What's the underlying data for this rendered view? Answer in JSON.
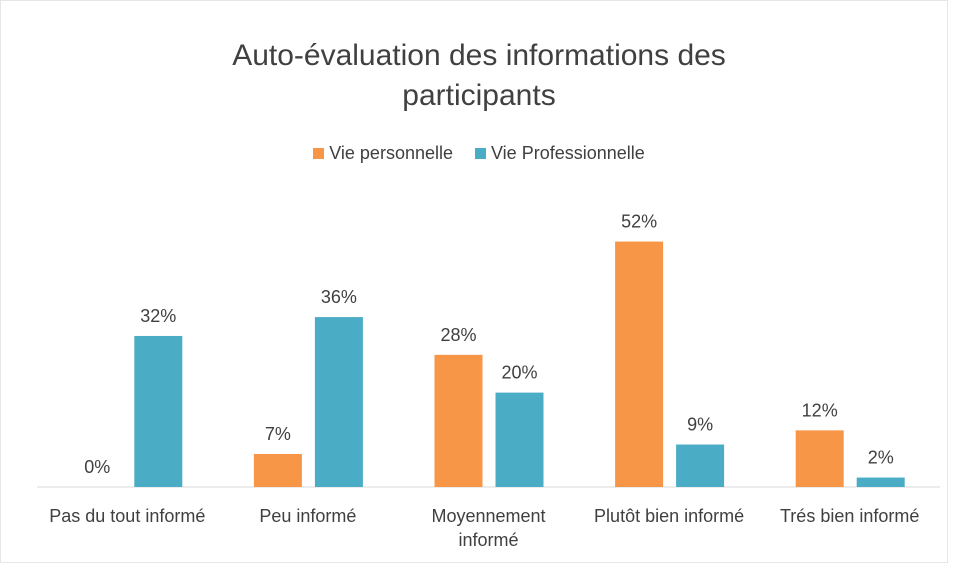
{
  "chart_data": {
    "type": "bar",
    "title": "Auto-évaluation des informations des participants",
    "categories": [
      "Pas du tout informé",
      "Peu informé",
      "Moyennement informé",
      "Plutôt bien informé",
      "Trés bien informé"
    ],
    "series": [
      {
        "name": "Vie personnelle",
        "color": "#f79646",
        "values": [
          0,
          7,
          28,
          52,
          12
        ],
        "value_labels": [
          "0%",
          "7%",
          "28%",
          "52%",
          "12%"
        ]
      },
      {
        "name": "Vie Professionnelle",
        "color": "#4bacc6",
        "values": [
          32,
          36,
          20,
          9,
          2
        ],
        "value_labels": [
          "32%",
          "36%",
          "20%",
          "9%",
          "2%"
        ]
      }
    ],
    "legend": "top"
  }
}
